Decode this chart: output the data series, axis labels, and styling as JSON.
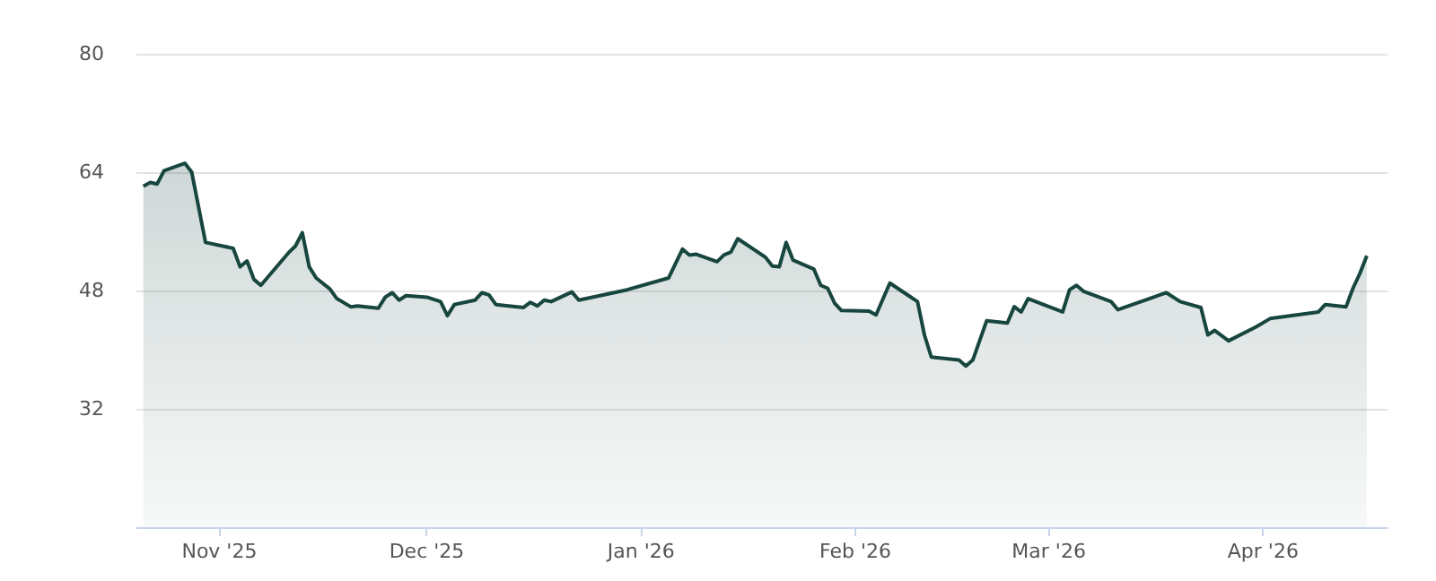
{
  "chart_data": {
    "type": "area",
    "x": [
      "2025-10-21",
      "2025-10-22",
      "2025-10-23",
      "2025-10-24",
      "2025-10-27",
      "2025-10-28",
      "2025-10-30",
      "2025-11-03",
      "2025-11-04",
      "2025-11-05",
      "2025-11-06",
      "2025-11-07",
      "2025-11-11",
      "2025-11-12",
      "2025-11-13",
      "2025-11-14",
      "2025-11-15",
      "2025-11-17",
      "2025-11-18",
      "2025-11-20",
      "2025-11-21",
      "2025-11-24",
      "2025-11-25",
      "2025-11-26",
      "2025-11-27",
      "2025-11-28",
      "2025-12-01",
      "2025-12-03",
      "2025-12-04",
      "2025-12-05",
      "2025-12-08",
      "2025-12-09",
      "2025-12-10",
      "2025-12-11",
      "2025-12-15",
      "2025-12-16",
      "2025-12-17",
      "2025-12-18",
      "2025-12-19",
      "2025-12-22",
      "2025-12-23",
      "2025-12-30",
      "2026-01-05",
      "2026-01-07",
      "2026-01-08",
      "2026-01-09",
      "2026-01-12",
      "2026-01-13",
      "2026-01-14",
      "2026-01-15",
      "2026-01-19",
      "2026-01-20",
      "2026-01-21",
      "2026-01-22",
      "2026-01-23",
      "2026-01-26",
      "2026-01-27",
      "2026-01-28",
      "2026-01-29",
      "2026-01-30",
      "2026-02-03",
      "2026-02-04",
      "2026-02-06",
      "2026-02-10",
      "2026-02-11",
      "2026-02-12",
      "2026-02-16",
      "2026-02-17",
      "2026-02-18",
      "2026-02-20",
      "2026-02-23",
      "2026-02-24",
      "2026-02-25",
      "2026-02-26",
      "2026-03-03",
      "2026-03-04",
      "2026-03-05",
      "2026-03-06",
      "2026-03-10",
      "2026-03-11",
      "2026-03-18",
      "2026-03-20",
      "2026-03-23",
      "2026-03-24",
      "2026-03-25",
      "2026-03-27",
      "2026-03-31",
      "2026-04-02",
      "2026-04-09",
      "2026-04-10",
      "2026-04-13",
      "2026-04-14",
      "2026-04-15",
      "2026-04-16"
    ],
    "series": [
      {
        "color": "#17463f",
        "values": [
          62.1,
          62.6,
          62.4,
          64.2,
          65.2,
          64.0,
          54.5,
          53.7,
          51.2,
          52.0,
          49.5,
          48.7,
          53.1,
          54.0,
          55.8,
          51.2,
          49.7,
          48.2,
          46.9,
          45.8,
          45.9,
          45.6,
          47.1,
          47.7,
          46.7,
          47.3,
          47.1,
          46.5,
          44.6,
          46.1,
          46.7,
          47.7,
          47.4,
          46.1,
          45.7,
          46.4,
          45.9,
          46.7,
          46.5,
          47.8,
          46.7,
          48.1,
          49.7,
          53.6,
          52.8,
          52.9,
          51.9,
          52.8,
          53.2,
          55.0,
          52.5,
          51.3,
          51.2,
          54.5,
          52.1,
          50.9,
          48.7,
          48.3,
          46.3,
          45.3,
          45.2,
          44.7,
          49.0,
          46.5,
          42.0,
          39.0,
          38.6,
          37.8,
          38.6,
          43.9,
          43.6,
          45.8,
          45.1,
          46.9,
          45.1,
          48.1,
          48.7,
          47.9,
          46.5,
          45.4,
          47.7,
          46.5,
          45.7,
          42.0,
          42.6,
          41.2,
          43.1,
          44.2,
          45.1,
          46.1,
          45.8,
          48.3,
          50.3,
          52.7
        ]
      }
    ],
    "xlim": [
      "2025-10-20",
      "2026-04-19"
    ],
    "xticks": [
      {
        "value": "2025-11-01",
        "label": "Nov '25"
      },
      {
        "value": "2025-12-01",
        "label": "Dec '25"
      },
      {
        "value": "2026-01-01",
        "label": "Jan '26"
      },
      {
        "value": "2026-02-01",
        "label": "Feb '26"
      },
      {
        "value": "2026-03-01",
        "label": "Mar '26"
      },
      {
        "value": "2026-04-01",
        "label": "Apr '26"
      }
    ],
    "ylim": [
      16,
      80
    ],
    "yticks": [
      32,
      48,
      64,
      80
    ],
    "grid": "y",
    "marker": "none"
  }
}
